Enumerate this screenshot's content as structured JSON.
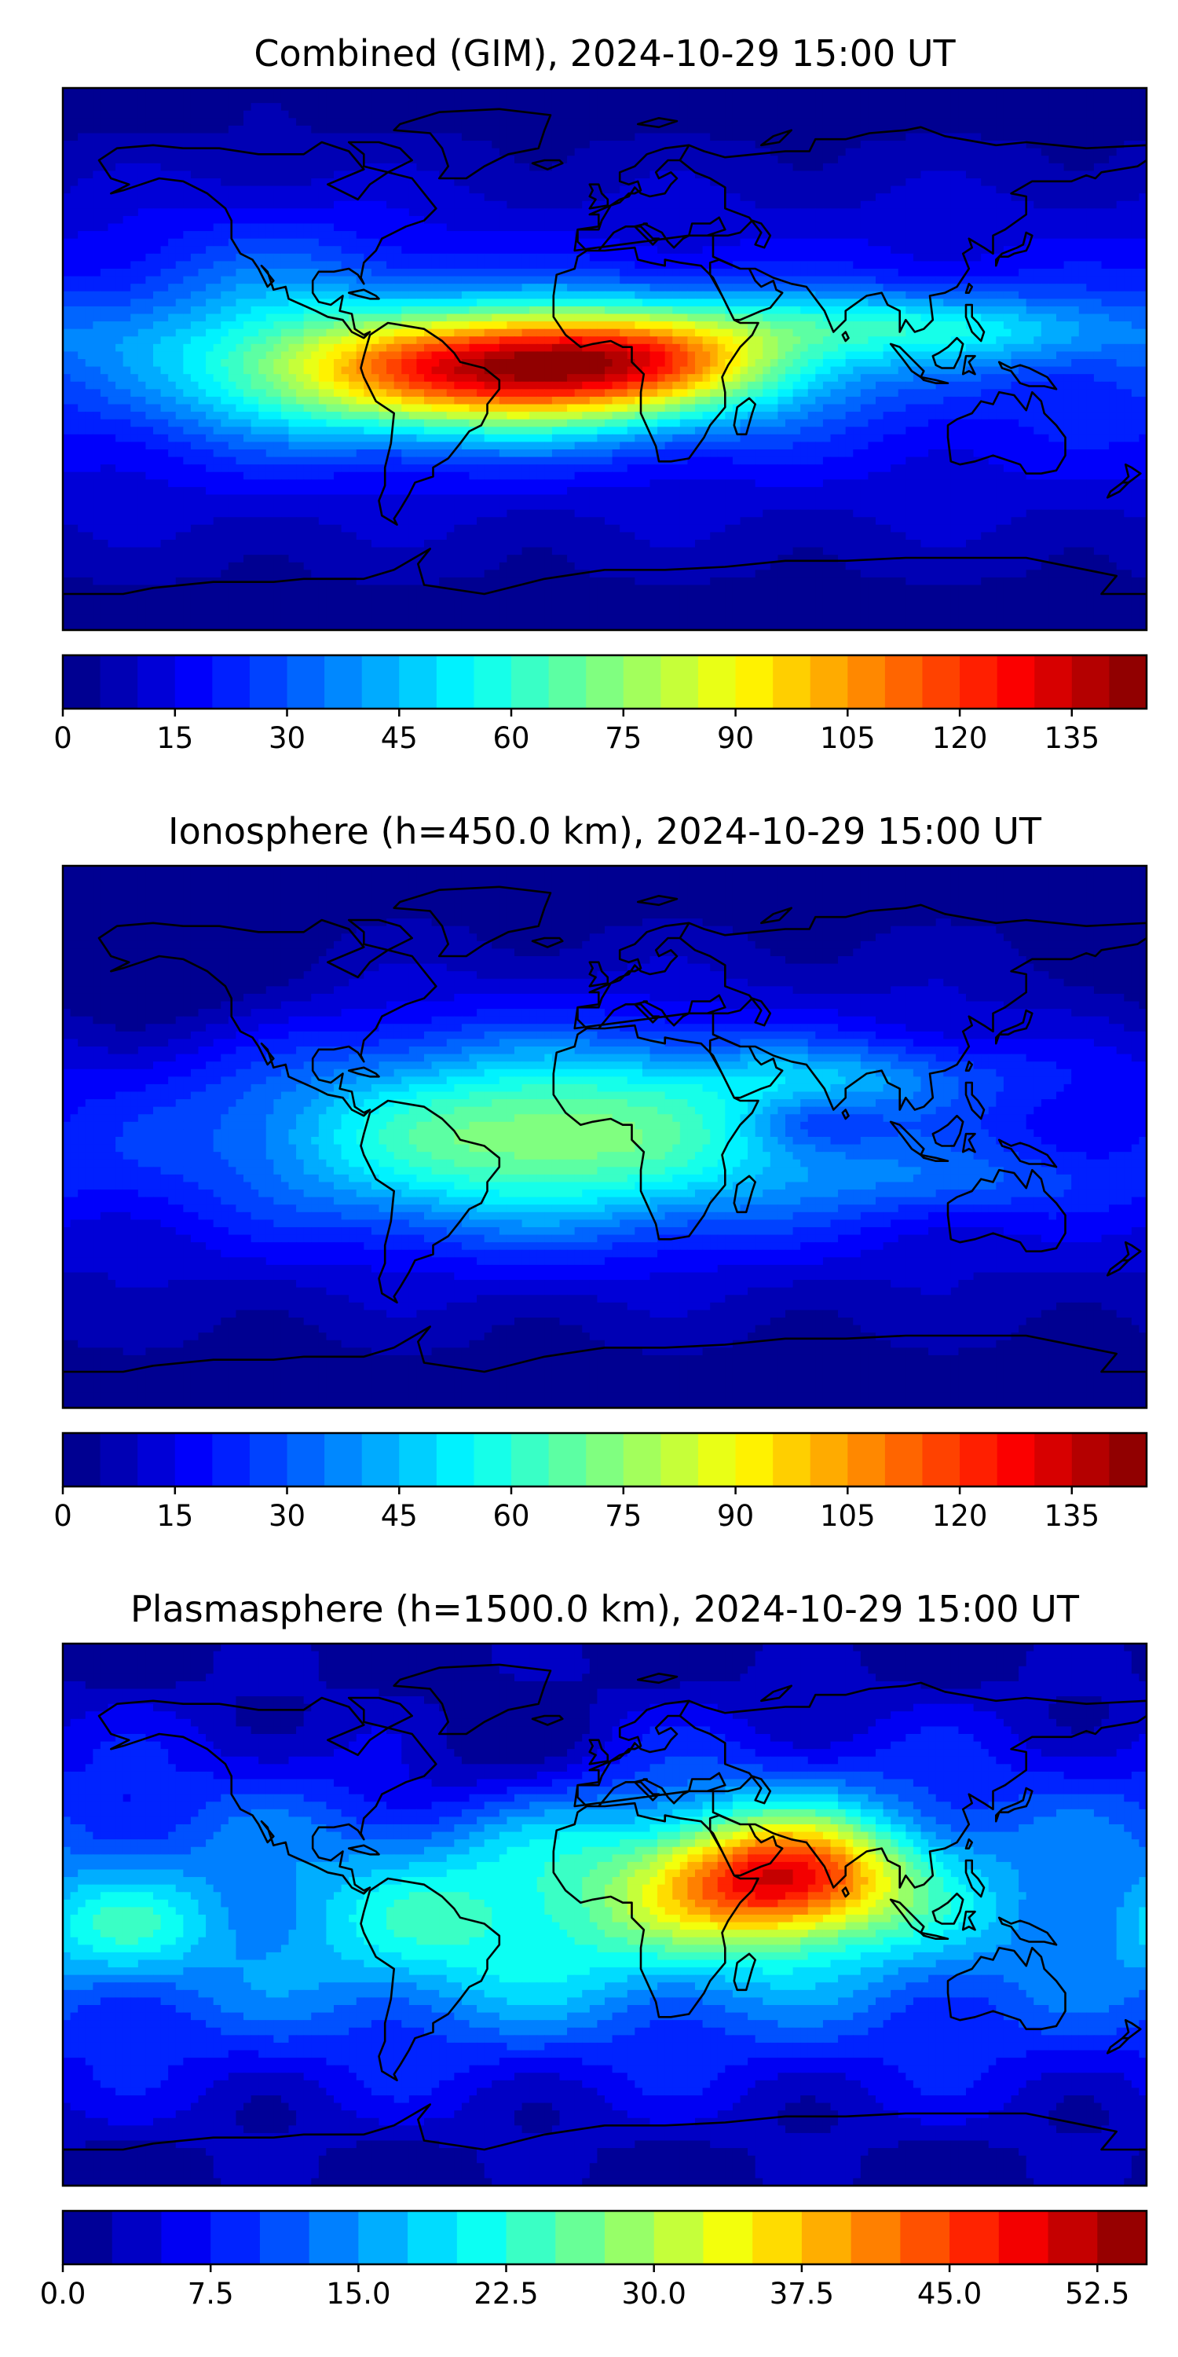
{
  "chart_data": [
    {
      "type": "heatmap",
      "title": "Combined (GIM), 2024-10-29 15:00 UT",
      "colormap": "jet",
      "grid": false,
      "colorbar": {
        "placement": "below",
        "range": [
          0,
          145
        ],
        "levels": 29,
        "ticks": [
          0,
          15,
          30,
          45,
          60,
          75,
          90,
          105,
          120,
          135
        ],
        "tick_labels": [
          "0",
          "15",
          "30",
          "45",
          "60",
          "75",
          "90",
          "105",
          "120",
          "135"
        ]
      },
      "features": [
        {
          "lon": -35,
          "lat": -5,
          "value": 90,
          "spread_lon": 55,
          "spread_lat": 14
        },
        {
          "lon": 5,
          "lat": 2,
          "value": 50,
          "spread_lon": 45,
          "spread_lat": 12
        },
        {
          "lon": 90,
          "lat": 12,
          "value": 25,
          "spread_lon": 40,
          "spread_lat": 8
        },
        {
          "lon": 140,
          "lat": 8,
          "value": 15,
          "spread_lon": 35,
          "spread_lat": 8
        },
        {
          "lon": -110,
          "lat": 10,
          "value": 20,
          "spread_lon": 35,
          "spread_lat": 25
        }
      ],
      "background": {
        "value": 18,
        "lat_falloff": 15
      }
    },
    {
      "type": "heatmap",
      "title": "Ionosphere  (h=450.0 km), 2024-10-29 15:00 UT",
      "colormap": "jet",
      "grid": false,
      "colorbar": {
        "placement": "below",
        "range": [
          0,
          145
        ],
        "levels": 29,
        "ticks": [
          0,
          15,
          30,
          45,
          60,
          75,
          90,
          105,
          120,
          135
        ],
        "tick_labels": [
          "0",
          "15",
          "30",
          "45",
          "60",
          "75",
          "90",
          "105",
          "120",
          "135"
        ]
      },
      "features": [
        {
          "lon": -20,
          "lat": 0,
          "value": 58,
          "spread_lon": 65,
          "spread_lat": 22
        },
        {
          "lon": 80,
          "lat": 20,
          "value": 18,
          "spread_lon": 40,
          "spread_lat": 8
        },
        {
          "lon": 120,
          "lat": -15,
          "value": 12,
          "spread_lon": 40,
          "spread_lat": 8
        },
        {
          "lon": 70,
          "lat": 5,
          "value": -12,
          "spread_lon": 15,
          "spread_lat": 6
        },
        {
          "lon": -150,
          "lat": 50,
          "value": -10,
          "spread_lon": 30,
          "spread_lat": 15
        }
      ],
      "background": {
        "value": 14,
        "lat_falloff": 10
      }
    },
    {
      "type": "heatmap",
      "title": "Plasmasphere (h=1500.0 km), 2024-10-29 15:00 UT",
      "colormap": "jet",
      "grid": false,
      "colorbar": {
        "placement": "below",
        "range": [
          0,
          55
        ],
        "levels": 22,
        "ticks": [
          0,
          7.5,
          15,
          22.5,
          30,
          37.5,
          45,
          52.5
        ],
        "tick_labels": [
          "0.0",
          "7.5",
          "15.0",
          "22.5",
          "30.0",
          "37.5",
          "45.0",
          "52.5"
        ]
      },
      "features": [
        {
          "lon": 60,
          "lat": 12,
          "value": 30,
          "spread_lon": 28,
          "spread_lat": 14
        },
        {
          "lon": 20,
          "lat": 10,
          "value": 10,
          "spread_lon": 60,
          "spread_lat": 25
        },
        {
          "lon": -160,
          "lat": -5,
          "value": 8,
          "spread_lon": 20,
          "spread_lat": 12
        },
        {
          "lon": -50,
          "lat": -10,
          "value": 5,
          "spread_lon": 40,
          "spread_lat": 20
        },
        {
          "lon": -40,
          "lat": 50,
          "value": -6,
          "spread_lon": 30,
          "spread_lat": 15
        }
      ],
      "background": {
        "value": 12,
        "lat_falloff": 6
      }
    }
  ]
}
